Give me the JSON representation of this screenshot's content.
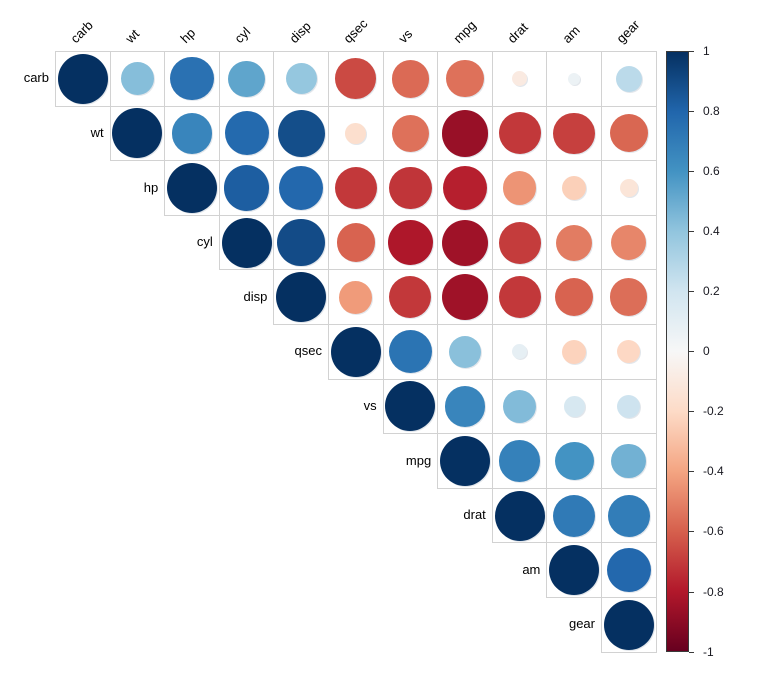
{
  "chart_data": {
    "type": "heatmap",
    "subtype": "correlation-matrix-circles",
    "shape": "upper-triangle",
    "title": "",
    "variables": [
      "carb",
      "wt",
      "hp",
      "cyl",
      "disp",
      "qsec",
      "vs",
      "mpg",
      "drat",
      "am",
      "gear"
    ],
    "matrix": [
      [
        1.0,
        0.43,
        0.75,
        0.53,
        0.39,
        -0.66,
        -0.57,
        -0.55,
        -0.09,
        0.06,
        0.27
      ],
      [
        null,
        1.0,
        0.66,
        0.78,
        0.89,
        -0.17,
        -0.55,
        -0.87,
        -0.71,
        -0.69,
        -0.58
      ],
      [
        null,
        null,
        1.0,
        0.83,
        0.79,
        -0.71,
        -0.72,
        -0.78,
        -0.45,
        -0.24,
        -0.13
      ],
      [
        null,
        null,
        null,
        1.0,
        0.9,
        -0.59,
        -0.81,
        -0.85,
        -0.7,
        -0.52,
        -0.49
      ],
      [
        null,
        null,
        null,
        null,
        1.0,
        -0.43,
        -0.71,
        -0.85,
        -0.71,
        -0.59,
        -0.56
      ],
      [
        null,
        null,
        null,
        null,
        null,
        1.0,
        0.74,
        0.42,
        0.09,
        -0.23,
        -0.21
      ],
      [
        null,
        null,
        null,
        null,
        null,
        null,
        1.0,
        0.66,
        0.44,
        0.17,
        0.21
      ],
      [
        null,
        null,
        null,
        null,
        null,
        null,
        null,
        1.0,
        0.68,
        0.6,
        0.48
      ],
      [
        null,
        null,
        null,
        null,
        null,
        null,
        null,
        null,
        1.0,
        0.71,
        0.7
      ],
      [
        null,
        null,
        null,
        null,
        null,
        null,
        null,
        null,
        null,
        1.0,
        0.79
      ],
      [
        null,
        null,
        null,
        null,
        null,
        null,
        null,
        null,
        null,
        null,
        1.0
      ]
    ],
    "value_range": [
      -1,
      1
    ],
    "size_encoding": "circle diameter proportional to sqrt(|r|)",
    "grid_line_color": "#d2d2d2",
    "label_color": "#000000",
    "colorbar": {
      "position": "right",
      "min": -1,
      "max": 1,
      "tick_labels": [
        "1",
        "0.8",
        "0.6",
        "0.4",
        "0.2",
        "0",
        "-0.2",
        "-0.4",
        "-0.6",
        "-0.8",
        "-1"
      ],
      "palette_low_to_high": [
        "#67001F",
        "#B2182B",
        "#D6604D",
        "#F4A582",
        "#FDDBC7",
        "#F7F7F7",
        "#D1E5F0",
        "#92C5DE",
        "#4393C3",
        "#2166AC",
        "#053061"
      ],
      "border_color": "#3a3a3a",
      "tick_label_color": "#17171f"
    }
  }
}
